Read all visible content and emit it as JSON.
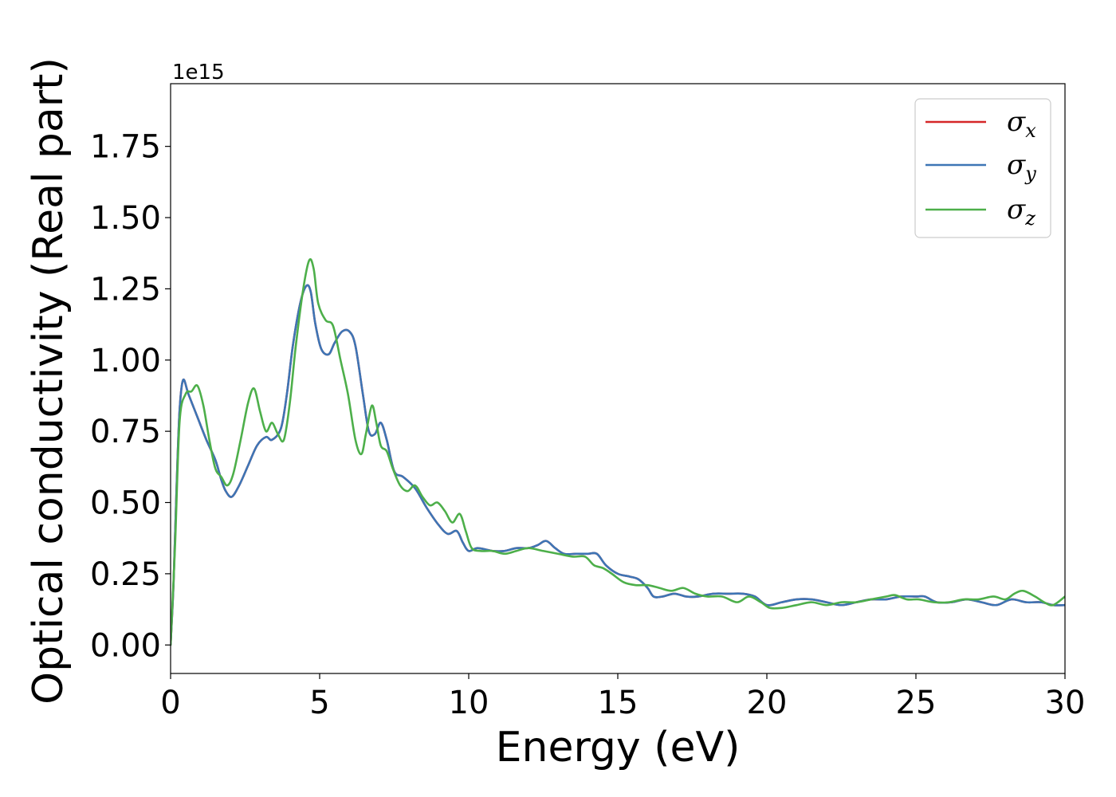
{
  "chart_data": {
    "type": "line",
    "title": "",
    "xlabel": "Energy (eV)",
    "ylabel": "Optical conductivity (Real part)",
    "y_offset_label": "1e15",
    "xlim": [
      0,
      30
    ],
    "ylim": [
      -0.1,
      1.97
    ],
    "x_ticks": [
      0,
      5,
      10,
      15,
      20,
      25,
      30
    ],
    "x_tick_labels": [
      "0",
      "5",
      "10",
      "15",
      "20",
      "25",
      "30"
    ],
    "y_ticks": [
      0,
      0.25,
      0.5,
      0.75,
      1.0,
      1.25,
      1.5,
      1.75
    ],
    "y_tick_labels": [
      "0.00",
      "0.25",
      "0.50",
      "0.75",
      "1.00",
      "1.25",
      "1.50",
      "1.75"
    ],
    "grid": false,
    "legend_position": "top-right",
    "series": [
      {
        "name": "σx",
        "symbol": "σ",
        "subscript": "x",
        "color": "#d62728",
        "x": [
          0,
          0.1,
          0.2,
          0.3,
          0.42,
          0.6,
          0.9,
          1.2,
          1.5,
          1.7,
          1.85,
          2.05,
          2.3,
          2.6,
          2.9,
          3.2,
          3.4,
          3.7,
          3.9,
          4.1,
          4.35,
          4.55,
          4.7,
          4.85,
          5.05,
          5.3,
          5.5,
          5.75,
          6.0,
          6.2,
          6.45,
          6.65,
          6.85,
          7.05,
          7.25,
          7.5,
          7.8,
          8.2,
          8.6,
          9.0,
          9.3,
          9.6,
          9.8,
          10.0,
          10.3,
          10.8,
          11.2,
          11.6,
          12.0,
          12.3,
          12.6,
          12.9,
          13.2,
          13.6,
          14.0,
          14.3,
          14.6,
          15.0,
          15.4,
          15.7,
          16.0,
          16.2,
          16.5,
          16.9,
          17.3,
          17.7,
          18.2,
          18.7,
          19.2,
          19.6,
          20.0,
          20.5,
          21.0,
          21.5,
          22.0,
          22.5,
          23.0,
          23.5,
          24.0,
          24.5,
          25.0,
          25.3,
          25.7,
          26.2,
          26.7,
          27.2,
          27.7,
          28.2,
          28.7,
          29.2,
          29.6,
          30.0
        ],
        "y": [
          0.0,
          0.22,
          0.55,
          0.82,
          0.93,
          0.88,
          0.8,
          0.72,
          0.65,
          0.58,
          0.54,
          0.52,
          0.56,
          0.63,
          0.7,
          0.73,
          0.72,
          0.76,
          0.88,
          1.05,
          1.2,
          1.26,
          1.24,
          1.13,
          1.04,
          1.02,
          1.06,
          1.1,
          1.1,
          1.05,
          0.88,
          0.75,
          0.74,
          0.78,
          0.72,
          0.61,
          0.59,
          0.55,
          0.48,
          0.42,
          0.39,
          0.4,
          0.36,
          0.33,
          0.34,
          0.33,
          0.33,
          0.34,
          0.34,
          0.35,
          0.365,
          0.34,
          0.32,
          0.32,
          0.32,
          0.32,
          0.28,
          0.25,
          0.24,
          0.23,
          0.2,
          0.17,
          0.17,
          0.18,
          0.17,
          0.17,
          0.18,
          0.18,
          0.18,
          0.17,
          0.14,
          0.15,
          0.16,
          0.16,
          0.15,
          0.14,
          0.15,
          0.16,
          0.16,
          0.17,
          0.17,
          0.17,
          0.15,
          0.15,
          0.16,
          0.15,
          0.14,
          0.16,
          0.15,
          0.15,
          0.14,
          0.14
        ]
      },
      {
        "name": "σy",
        "symbol": "σ",
        "subscript": "y",
        "color": "#3d75b5",
        "x": [
          0,
          0.1,
          0.2,
          0.3,
          0.42,
          0.6,
          0.9,
          1.2,
          1.5,
          1.7,
          1.85,
          2.05,
          2.3,
          2.6,
          2.9,
          3.2,
          3.4,
          3.7,
          3.9,
          4.1,
          4.35,
          4.55,
          4.7,
          4.85,
          5.05,
          5.3,
          5.5,
          5.75,
          6.0,
          6.2,
          6.45,
          6.65,
          6.85,
          7.05,
          7.25,
          7.5,
          7.8,
          8.2,
          8.6,
          9.0,
          9.3,
          9.6,
          9.8,
          10.0,
          10.3,
          10.8,
          11.2,
          11.6,
          12.0,
          12.3,
          12.6,
          12.9,
          13.2,
          13.6,
          14.0,
          14.3,
          14.6,
          15.0,
          15.4,
          15.7,
          16.0,
          16.2,
          16.5,
          16.9,
          17.3,
          17.7,
          18.2,
          18.7,
          19.2,
          19.6,
          20.0,
          20.5,
          21.0,
          21.5,
          22.0,
          22.5,
          23.0,
          23.5,
          24.0,
          24.5,
          25.0,
          25.3,
          25.7,
          26.2,
          26.7,
          27.2,
          27.7,
          28.2,
          28.7,
          29.2,
          29.6,
          30.0
        ],
        "y": [
          0.0,
          0.22,
          0.55,
          0.82,
          0.93,
          0.88,
          0.8,
          0.72,
          0.65,
          0.58,
          0.54,
          0.52,
          0.56,
          0.63,
          0.7,
          0.73,
          0.72,
          0.76,
          0.88,
          1.05,
          1.2,
          1.26,
          1.24,
          1.13,
          1.04,
          1.02,
          1.06,
          1.1,
          1.1,
          1.05,
          0.88,
          0.75,
          0.74,
          0.78,
          0.72,
          0.61,
          0.59,
          0.55,
          0.48,
          0.42,
          0.39,
          0.4,
          0.36,
          0.33,
          0.34,
          0.33,
          0.33,
          0.34,
          0.34,
          0.35,
          0.365,
          0.34,
          0.32,
          0.32,
          0.32,
          0.32,
          0.28,
          0.25,
          0.24,
          0.23,
          0.2,
          0.17,
          0.17,
          0.18,
          0.17,
          0.17,
          0.18,
          0.18,
          0.18,
          0.17,
          0.14,
          0.15,
          0.16,
          0.16,
          0.15,
          0.14,
          0.15,
          0.16,
          0.16,
          0.17,
          0.17,
          0.17,
          0.15,
          0.15,
          0.16,
          0.15,
          0.14,
          0.16,
          0.15,
          0.15,
          0.14,
          0.14
        ]
      },
      {
        "name": "σz",
        "symbol": "σ",
        "subscript": "z",
        "color": "#4daf4a",
        "x": [
          0,
          0.15,
          0.3,
          0.5,
          0.7,
          0.9,
          1.1,
          1.3,
          1.5,
          1.7,
          1.9,
          2.1,
          2.35,
          2.6,
          2.8,
          3.0,
          3.2,
          3.4,
          3.6,
          3.8,
          4.0,
          4.2,
          4.45,
          4.65,
          4.8,
          4.95,
          5.2,
          5.45,
          5.7,
          5.95,
          6.2,
          6.4,
          6.55,
          6.75,
          6.9,
          7.05,
          7.25,
          7.45,
          7.7,
          7.95,
          8.2,
          8.45,
          8.7,
          8.95,
          9.2,
          9.45,
          9.7,
          9.9,
          10.1,
          10.4,
          10.8,
          11.2,
          11.6,
          12.0,
          12.5,
          13.0,
          13.5,
          13.9,
          14.2,
          14.5,
          14.8,
          15.2,
          15.6,
          16.0,
          16.4,
          16.8,
          17.2,
          17.6,
          18.0,
          18.5,
          19.0,
          19.4,
          19.8,
          20.1,
          20.5,
          21.0,
          21.5,
          22.0,
          22.5,
          23.0,
          23.5,
          24.0,
          24.3,
          24.7,
          25.1,
          25.6,
          26.1,
          26.6,
          27.1,
          27.6,
          28.0,
          28.3,
          28.6,
          29.0,
          29.3,
          29.6,
          30.0
        ],
        "y": [
          0.0,
          0.35,
          0.78,
          0.88,
          0.89,
          0.91,
          0.84,
          0.72,
          0.62,
          0.59,
          0.56,
          0.6,
          0.72,
          0.85,
          0.9,
          0.82,
          0.75,
          0.78,
          0.74,
          0.72,
          0.85,
          1.05,
          1.25,
          1.35,
          1.32,
          1.2,
          1.14,
          1.12,
          1.0,
          0.88,
          0.72,
          0.67,
          0.74,
          0.84,
          0.78,
          0.7,
          0.68,
          0.62,
          0.56,
          0.54,
          0.56,
          0.52,
          0.49,
          0.5,
          0.47,
          0.43,
          0.46,
          0.4,
          0.34,
          0.33,
          0.33,
          0.32,
          0.33,
          0.34,
          0.33,
          0.32,
          0.31,
          0.31,
          0.28,
          0.27,
          0.25,
          0.22,
          0.21,
          0.21,
          0.2,
          0.19,
          0.2,
          0.18,
          0.17,
          0.17,
          0.15,
          0.17,
          0.15,
          0.13,
          0.13,
          0.14,
          0.15,
          0.14,
          0.15,
          0.15,
          0.16,
          0.17,
          0.175,
          0.16,
          0.16,
          0.15,
          0.15,
          0.16,
          0.16,
          0.17,
          0.16,
          0.18,
          0.19,
          0.17,
          0.15,
          0.14,
          0.17
        ]
      }
    ]
  }
}
